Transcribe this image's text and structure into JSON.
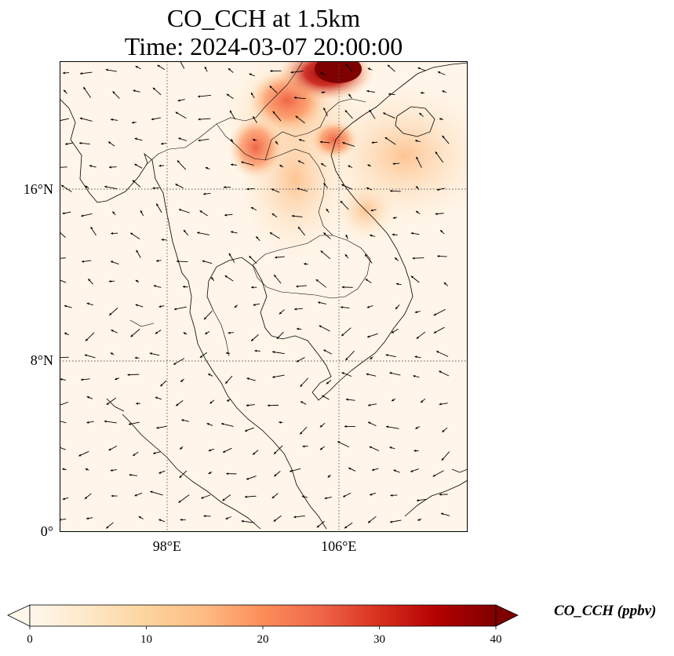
{
  "title": {
    "line1": "CO_CCH at 1.5km",
    "line2": "Time: 2024-03-07 20:00:00"
  },
  "map": {
    "extent": {
      "lon_min": 93,
      "lon_max": 112,
      "lat_min": 0,
      "lat_max": 22
    },
    "lat_ticks": [
      {
        "value": 16,
        "label": "16°N"
      },
      {
        "value": 8,
        "label": "8°N"
      },
      {
        "value": 0,
        "label": "0°"
      }
    ],
    "lon_ticks": [
      {
        "value": 98,
        "label": "98°E"
      },
      {
        "value": 106,
        "label": "106°E"
      }
    ],
    "gridlines": "dotted",
    "features": [
      "coastlines",
      "country-borders",
      "wind-vectors"
    ]
  },
  "colorbar": {
    "label": "CO_CCH (ppbv)",
    "min": 0,
    "max": 40,
    "ticks": [
      {
        "value": 0,
        "label": "0"
      },
      {
        "value": 10,
        "label": "10"
      },
      {
        "value": 20,
        "label": "20"
      },
      {
        "value": 30,
        "label": "30"
      },
      {
        "value": 40,
        "label": "40"
      }
    ],
    "extend": "both",
    "colormap": "OrRd",
    "colors": [
      "#fff7ec",
      "#fee8c8",
      "#fdd49e",
      "#fdbb84",
      "#fc8d59",
      "#ef6548",
      "#d7301f",
      "#b30000",
      "#7f0000"
    ]
  }
}
